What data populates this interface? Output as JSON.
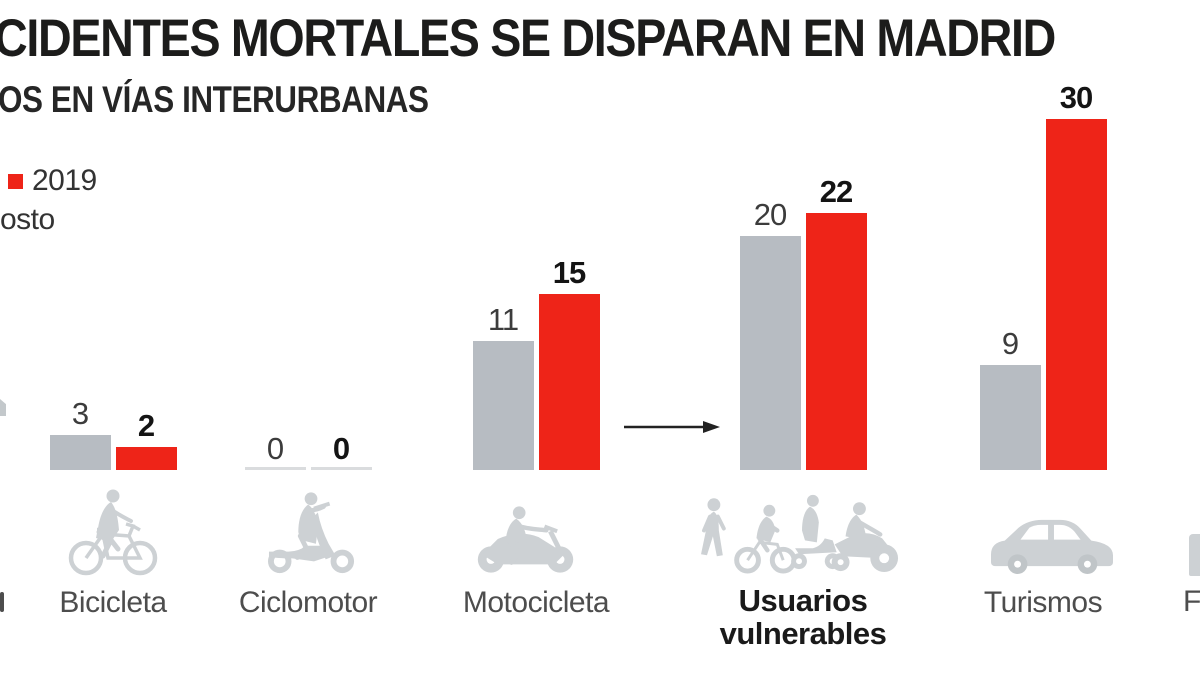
{
  "legend": {
    "swatch_color": "#ee2418",
    "year_label": "2019",
    "note_fragment": "osto"
  },
  "fragments": {
    "right_category_label": "F"
  },
  "colors": {
    "red": "#ee2418",
    "gray_bar": "#b7bcc2",
    "icon": "#cdd1d4",
    "icon_dark": "#c0c5c8",
    "zero_line": "#dadcde",
    "value_gray": "#3c3c3c",
    "value_black": "#141414",
    "label": "#4d4d4d",
    "arrow": "#222222",
    "edge_fragment": "#c3c8cb"
  },
  "chart_data": {
    "type": "bar",
    "title": "CIDENTES MORTALES SE DISPARAN EN MADRID",
    "subtitle": "OS EN VÍAS INTERURBANAS",
    "categories": [
      "Bicicleta",
      "Ciclomotor",
      "Motocicleta",
      "Usuarios vulnerables",
      "Turismos"
    ],
    "series": [
      {
        "name": "",
        "color": "#b7bcc2",
        "values": [
          3,
          0,
          11,
          20,
          9
        ]
      },
      {
        "name": "2019",
        "color": "#ee2418",
        "values": [
          2,
          0,
          15,
          22,
          30
        ]
      }
    ],
    "emphasized_category": "Usuarios vulnerables",
    "icons": [
      "bicycle",
      "moped",
      "motorcycle",
      "vulnerable-users-group",
      "car"
    ],
    "annotation_arrow": {
      "from": "Motocicleta",
      "to": "Usuarios vulnerables"
    },
    "ylim": [
      0,
      30
    ],
    "grid": false,
    "legend_position": "top-left"
  }
}
